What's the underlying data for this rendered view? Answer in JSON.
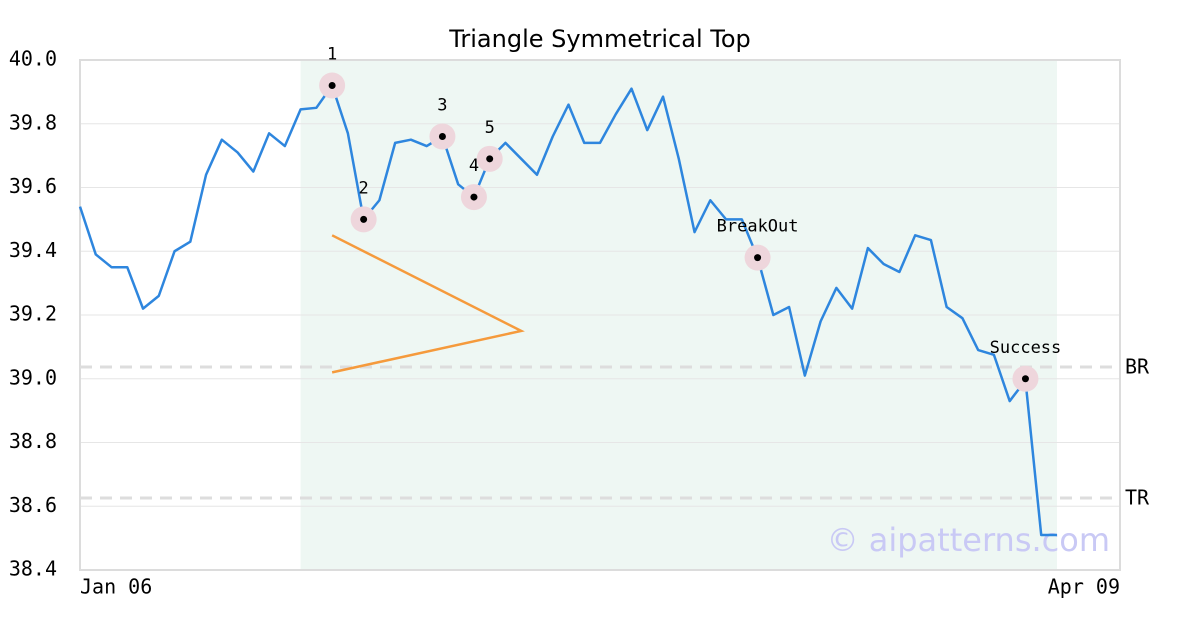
{
  "chart_data": {
    "type": "line",
    "title": "Triangle Symmetrical Top",
    "categories": [
      "Jan 06",
      null,
      null,
      null,
      null,
      null,
      null,
      null,
      null,
      null,
      null,
      null,
      null,
      null,
      null,
      null,
      null,
      null,
      null,
      null,
      null,
      null,
      null,
      null,
      null,
      null,
      null,
      null,
      null,
      null,
      null,
      null,
      null,
      null,
      null,
      null,
      null,
      null,
      null,
      null,
      null,
      null,
      null,
      null,
      null,
      null,
      null,
      null,
      null,
      null,
      null,
      null,
      null,
      null,
      null,
      null,
      null,
      null,
      null,
      null,
      null,
      null,
      null,
      null,
      null,
      null,
      "Apr 09"
    ],
    "values": [
      39.54,
      39.39,
      39.35,
      39.35,
      39.22,
      39.26,
      39.4,
      39.43,
      39.64,
      39.75,
      39.71,
      39.65,
      39.77,
      39.73,
      39.845,
      39.85,
      39.92,
      39.77,
      39.5,
      39.56,
      39.74,
      39.75,
      39.73,
      39.76,
      39.61,
      39.57,
      39.69,
      39.74,
      39.69,
      39.64,
      39.76,
      39.86,
      39.74,
      39.74,
      39.83,
      39.91,
      39.78,
      39.885,
      39.69,
      39.46,
      39.56,
      39.5,
      39.5,
      39.38,
      39.2,
      39.225,
      39.01,
      39.18,
      39.285,
      39.22,
      39.41,
      39.36,
      39.335,
      39.45,
      39.435,
      39.225,
      39.19,
      39.09,
      39.075,
      38.93,
      38.995,
      38.51,
      38.51,
      null,
      null,
      null,
      null
    ],
    "color": "#2e86de",
    "ylim": [
      38.4,
      40.0
    ],
    "yticks": [
      38.4,
      38.6,
      38.8,
      {
        "value": 39.0,
        "label": "39.0"
      },
      39.2,
      39.4,
      39.6,
      39.8,
      {
        "value": 40.0,
        "label": "40.0"
      }
    ],
    "grid": true,
    "pattern_range": [
      14,
      62
    ],
    "triangle": {
      "x": [
        16,
        28,
        16
      ],
      "y": [
        39.45,
        39.15,
        39.02
      ],
      "color": "#f59a3c"
    },
    "annotations": [
      {
        "label": "1",
        "x": 16,
        "y": 39.92
      },
      {
        "label": "2",
        "x": 18,
        "y": 39.5
      },
      {
        "label": "3",
        "x": 23,
        "y": 39.76
      },
      {
        "label": "4",
        "x": 25,
        "y": 39.57
      },
      {
        "label": "5",
        "x": 26,
        "y": 39.69
      },
      {
        "label": "BreakOut",
        "x": 43,
        "y": 39.38
      },
      {
        "label": "Success",
        "x": 60,
        "y": 39.0
      }
    ],
    "levels": [
      {
        "label": "BR",
        "value": 39.037
      },
      {
        "label": "TR",
        "value": 38.626
      }
    ],
    "watermark": "© aipatterns.com"
  }
}
